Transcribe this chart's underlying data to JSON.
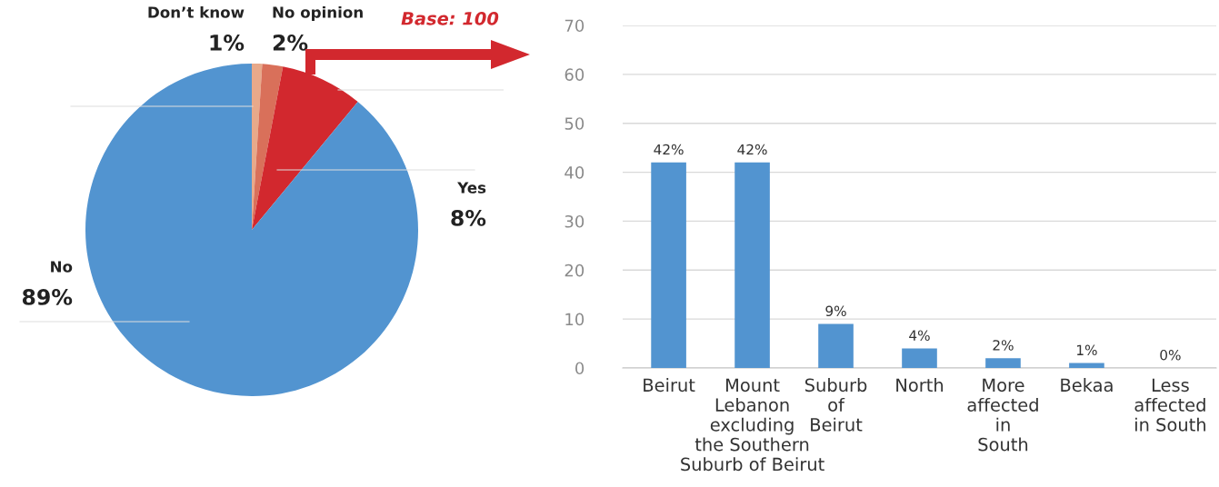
{
  "chart_data": [
    {
      "type": "pie",
      "categories": [
        "Don’t know",
        "No opinion",
        "Yes",
        "No"
      ],
      "values": [
        1,
        2,
        8,
        89
      ],
      "value_labels": [
        "1%",
        "2%",
        "8%",
        "89%"
      ],
      "colors": [
        "#e8a98a",
        "#d9705a",
        "#d2282e",
        "#5294d0"
      ],
      "annotations": [
        "Base: 100"
      ]
    },
    {
      "type": "bar",
      "categories": [
        "Beirut",
        "Mount\nLebanon\nexcluding\nthe Southern\nSuburb of Beirut",
        "Suburb\nof\nBeirut",
        "North",
        "More\naffected\nin\nSouth",
        "Bekaa",
        "Less\naffected\nin South"
      ],
      "values": [
        42,
        42,
        9,
        4,
        2,
        1,
        0
      ],
      "value_labels": [
        "42%",
        "42%",
        "9%",
        "4%",
        "2%",
        "1%",
        "0%"
      ],
      "color": "#5294d0",
      "ylim": [
        0,
        70
      ],
      "yticks": [
        0,
        10,
        20,
        30,
        40,
        50,
        60,
        70
      ],
      "grid": "y"
    }
  ]
}
